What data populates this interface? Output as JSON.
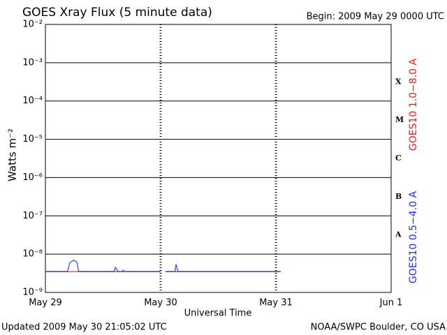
{
  "chart_data": {
    "type": "line",
    "title": "GOES Xray Flux (5 minute data)",
    "begin": "Begin:  2009 May 29 0000 UTC",
    "xlabel": "Universal Time",
    "ylabel": "Watts m⁻²",
    "updated": "Updated 2009 May 30 21:05:02 UTC",
    "credit": "NOAA/SWPC Boulder, CO USA",
    "log_y": true,
    "grid": true,
    "xlim": [
      0,
      72
    ],
    "xticks": [
      {
        "value": 0,
        "label": "May 29"
      },
      {
        "value": 24,
        "label": "May 30"
      },
      {
        "value": 48,
        "label": "May 31"
      },
      {
        "value": 72,
        "label": "Jun 1"
      }
    ],
    "ylim": [
      1e-09,
      0.01
    ],
    "yticks": [
      {
        "value": 1e-09,
        "label": "10⁻⁹"
      },
      {
        "value": 1e-08,
        "label": "10⁻⁸"
      },
      {
        "value": 1e-07,
        "label": "10⁻⁷"
      },
      {
        "value": 1e-06,
        "label": "10⁻⁶"
      },
      {
        "value": 1e-05,
        "label": "10⁻⁵"
      },
      {
        "value": 0.0001,
        "label": "10⁻⁴"
      },
      {
        "value": 0.001,
        "label": "10⁻³"
      },
      {
        "value": 0.01,
        "label": "10⁻²"
      }
    ],
    "flare_classes": [
      "X",
      "M",
      "C",
      "B",
      "A"
    ],
    "series": [
      {
        "name": "GOES10 1.0−8.0 A",
        "color": "#e02020",
        "x": [
          0,
          24,
          24.5,
          25,
          49
        ],
        "values": [
          3.5e-09,
          3.5e-09,
          null,
          3.5e-09,
          3.5e-09
        ]
      },
      {
        "name": "GOES10 0.5−4.0 A",
        "color": "#2030e0",
        "x": [
          0,
          4.6,
          5.1,
          5.9,
          6.6,
          6.9,
          14.3,
          14.6,
          15.1,
          16,
          16.2,
          16.5,
          24,
          24.5,
          25,
          27,
          27.2,
          27.6,
          49
        ],
        "values": [
          3.5e-09,
          3.5e-09,
          6e-09,
          7e-09,
          6e-09,
          3.5e-09,
          3.5e-09,
          4.5e-09,
          3.5e-09,
          3.5e-09,
          3.8e-09,
          3.5e-09,
          3.5e-09,
          null,
          3.5e-09,
          3.5e-09,
          5.5e-09,
          3.5e-09,
          3.5e-09
        ]
      }
    ]
  }
}
